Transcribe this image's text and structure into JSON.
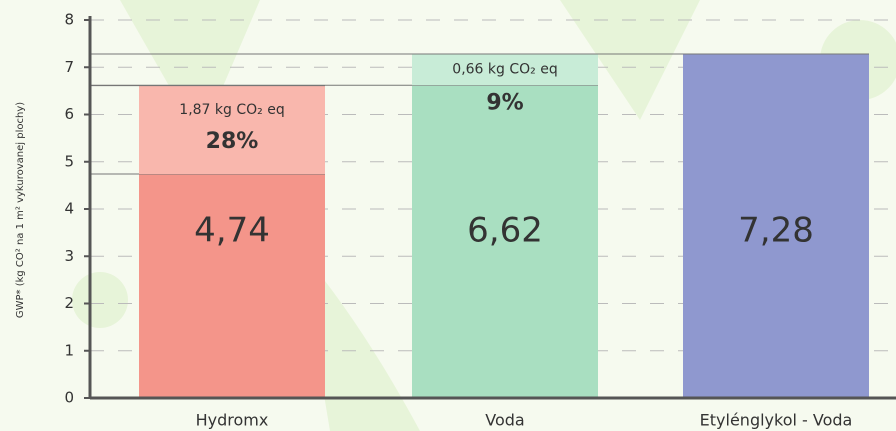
{
  "chart_data": {
    "type": "stacked-bar",
    "y_label": "GWP* (kg CO² na 1 m²  vykurovanej plochy)",
    "categories": [
      "Hydromx",
      "Voda",
      "Etylénglykol - Voda"
    ],
    "series": [
      {
        "colors": [
          "#f4958a",
          "#a9dfc1",
          "#8f98cf"
        ],
        "values": [
          4.74,
          6.62,
          7.28
        ],
        "value_labels": [
          "4,74",
          "6,62",
          "7,28"
        ]
      },
      {
        "colors": [
          "#f9b7ad",
          "#c8ecd7",
          "#8f98cf"
        ],
        "values": [
          1.87,
          0.66,
          null
        ],
        "value_labels": [
          "1,87 kg CO₂ eq",
          "0,66 kg CO₂ eq",
          null
        ],
        "share_labels": [
          "28%",
          "9%",
          null
        ]
      }
    ],
    "ylim": [
      0,
      8
    ],
    "yticks": [
      0,
      1,
      2,
      3,
      4,
      5,
      6,
      7,
      8
    ],
    "grid": true
  }
}
